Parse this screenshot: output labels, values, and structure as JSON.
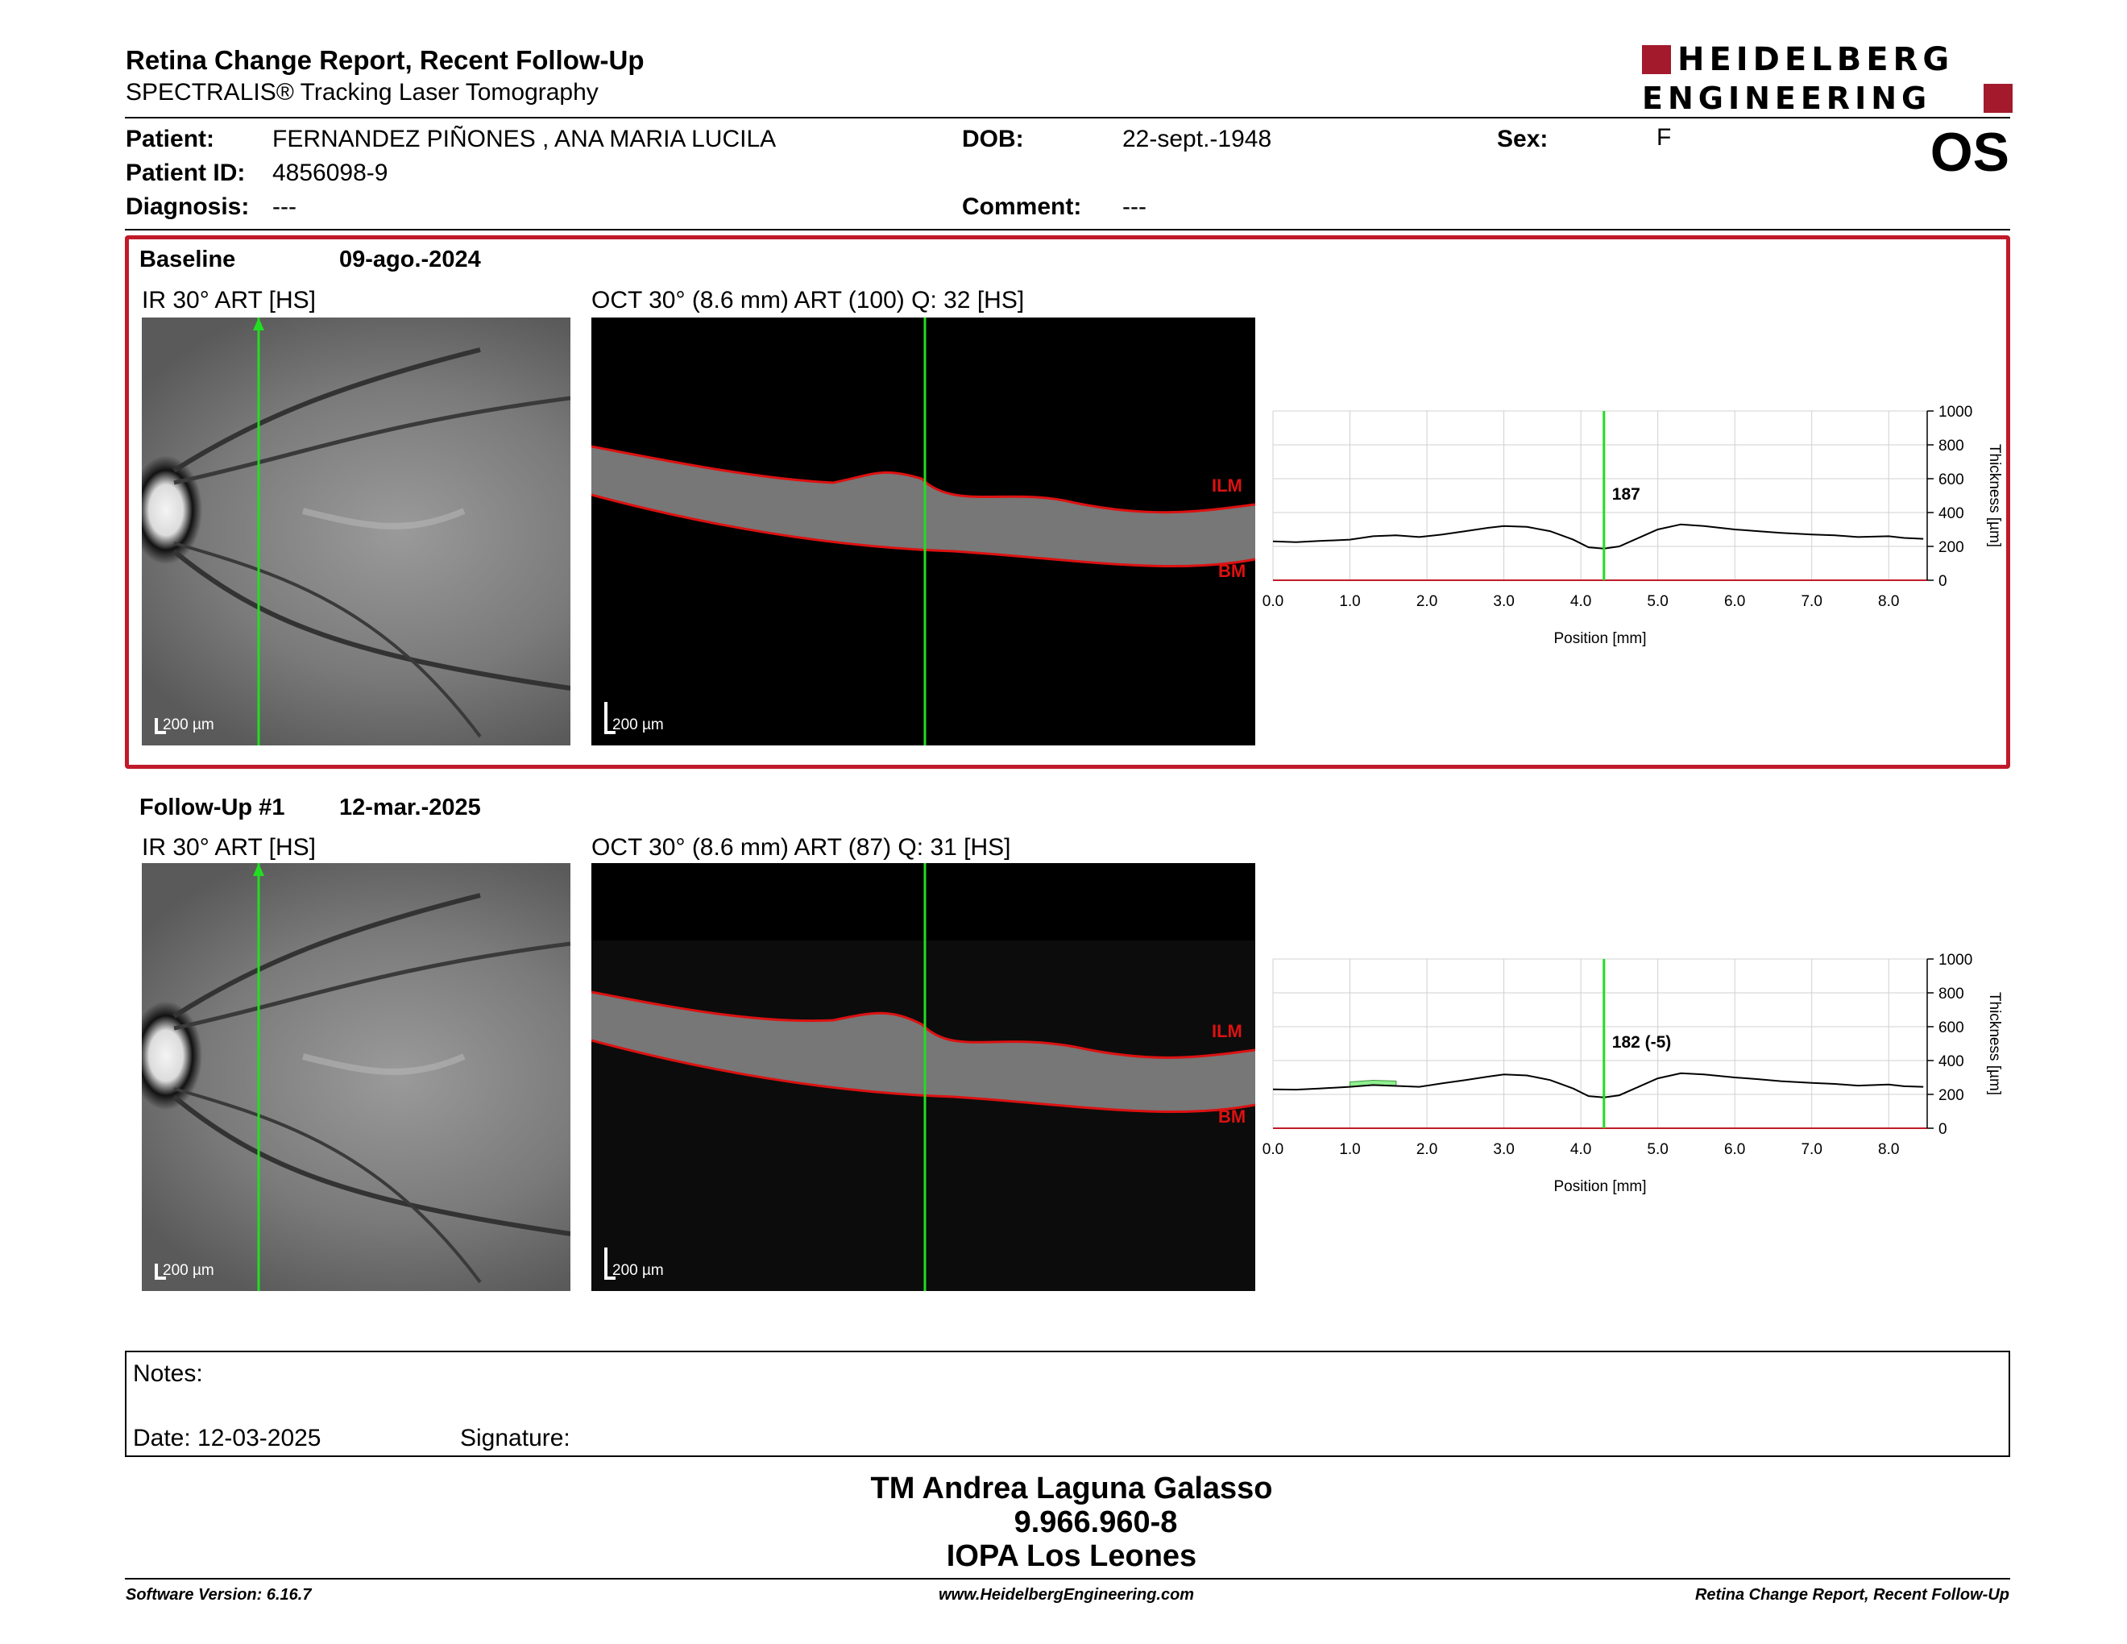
{
  "header": {
    "title": "Retina Change Report, Recent Follow-Up",
    "subtitle": "SPECTRALIS® Tracking Laser Tomography",
    "logo_line1": "HEIDELBERG",
    "logo_line2": "ENGINEERING",
    "brand_color": "#a31a2c",
    "eye": "OS"
  },
  "patient": {
    "patient_label": "Patient:",
    "patient_value": "FERNANDEZ PIÑONES , ANA MARIA LUCILA",
    "id_label": "Patient ID:",
    "id_value": "4856098-9",
    "diagnosis_label": "Diagnosis:",
    "diagnosis_value": "---",
    "dob_label": "DOB:",
    "dob_value": "22-sept.-1948",
    "comment_label": "Comment:",
    "comment_value": "---",
    "sex_label": "Sex:",
    "sex_value": "F"
  },
  "baseline": {
    "label": "Baseline",
    "date": "09-ago.-2024",
    "ir_label": "IR 30° ART [HS]",
    "oct_label": "OCT 30° (8.6 mm) ART (100) Q: 32 [HS]",
    "ir_scale": "200 µm",
    "oct_scale": "200 µm",
    "ilm": "ILM",
    "bm": "BM",
    "highlight_color": "#c01a2a"
  },
  "followup": {
    "label": "Follow-Up #1",
    "date": "12-mar.-2025",
    "ir_label": "IR 30° ART [HS]",
    "oct_label": "OCT 30° (8.6 mm) ART (87) Q: 31 [HS]",
    "ir_scale": "200 µm",
    "oct_scale": "200 µm",
    "ilm": "ILM",
    "bm": "BM"
  },
  "chart_data": [
    {
      "type": "line",
      "xlabel": "Position [mm]",
      "ylabel": "Thickness [µm]",
      "xlim": [
        0,
        8.5
      ],
      "ylim": [
        0,
        1000
      ],
      "x_ticks": [
        "0.0",
        "1.0",
        "2.0",
        "3.0",
        "4.0",
        "5.0",
        "6.0",
        "7.0",
        "8.0"
      ],
      "y_ticks": [
        "0",
        "200",
        "400",
        "600",
        "800",
        "1000"
      ],
      "grid": true,
      "cursor_x": 4.3,
      "cursor_label": "187",
      "x": [
        0.0,
        0.3,
        0.6,
        1.0,
        1.3,
        1.6,
        1.9,
        2.2,
        2.5,
        2.8,
        3.0,
        3.3,
        3.6,
        3.9,
        4.1,
        4.3,
        4.5,
        4.7,
        5.0,
        5.3,
        5.6,
        6.0,
        6.3,
        6.6,
        7.0,
        7.3,
        7.6,
        8.0,
        8.2,
        8.45
      ],
      "values": [
        230,
        225,
        232,
        240,
        260,
        265,
        255,
        270,
        290,
        310,
        320,
        315,
        290,
        240,
        195,
        187,
        200,
        240,
        300,
        330,
        320,
        300,
        290,
        280,
        270,
        265,
        255,
        260,
        250,
        245
      ]
    },
    {
      "type": "line",
      "xlabel": "Position [mm]",
      "ylabel": "Thickness [µm]",
      "xlim": [
        0,
        8.5
      ],
      "ylim": [
        0,
        1000
      ],
      "x_ticks": [
        "0.0",
        "1.0",
        "2.0",
        "3.0",
        "4.0",
        "5.0",
        "6.0",
        "7.0",
        "8.0"
      ],
      "y_ticks": [
        "0",
        "200",
        "400",
        "600",
        "800",
        "1000"
      ],
      "grid": true,
      "cursor_x": 4.3,
      "cursor_label": "182 (-5)",
      "x": [
        0.0,
        0.3,
        0.6,
        1.0,
        1.3,
        1.6,
        1.9,
        2.2,
        2.5,
        2.8,
        3.0,
        3.3,
        3.6,
        3.9,
        4.1,
        4.3,
        4.5,
        4.7,
        5.0,
        5.3,
        5.6,
        6.0,
        6.3,
        6.6,
        7.0,
        7.3,
        7.6,
        8.0,
        8.2,
        8.45
      ],
      "values": [
        230,
        228,
        235,
        245,
        255,
        250,
        245,
        265,
        285,
        305,
        318,
        312,
        285,
        235,
        190,
        182,
        195,
        235,
        295,
        325,
        318,
        300,
        290,
        278,
        268,
        262,
        252,
        258,
        248,
        245
      ],
      "change_region": {
        "x_from": 1.0,
        "x_to": 1.75,
        "color": "#90ee90"
      }
    }
  ],
  "notes": {
    "notes_label": "Notes:",
    "date_label": "Date: 12-03-2025",
    "signature_label": "Signature:"
  },
  "signature": {
    "line1": "TM Andrea Laguna Galasso",
    "line2": "9.966.960-8",
    "line3": "IOPA Los Leones"
  },
  "footer": {
    "software": "Software Version: 6.16.7",
    "website": "www.HeidelbergEngineering.com",
    "report": "Retina Change Report, Recent Follow-Up"
  }
}
